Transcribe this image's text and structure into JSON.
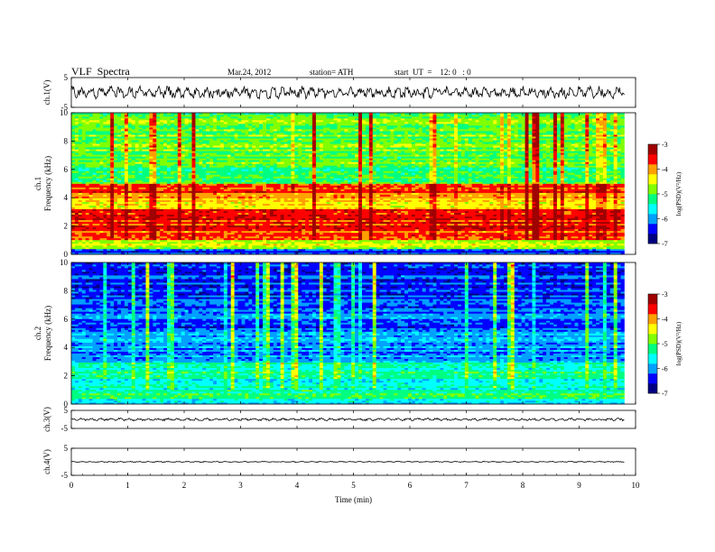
{
  "header": {
    "title": "VLF  Spectra",
    "date": "Mar.24, 2012",
    "station": "station= ATH",
    "start": "start  UT  =    12: 0   : 0"
  },
  "chart_data": [
    {
      "type": "line",
      "name": "ch1-waveform",
      "ylabel": "ch.1(V)",
      "ylim": [
        -5,
        5
      ],
      "yticks": [
        "5",
        "-5"
      ],
      "xlim": [
        0,
        10
      ],
      "data_xrange": [
        0,
        9.8
      ],
      "amplitude_range": [
        -2.2,
        2.2
      ]
    },
    {
      "type": "heatmap",
      "name": "ch1-spectrogram",
      "ylabel": "ch.1\nFrequency  (kHz)",
      "ylim": [
        0,
        10
      ],
      "yticks": [
        "0",
        "2",
        "4",
        "6",
        "8",
        "10"
      ],
      "xlim": [
        0,
        10
      ],
      "data_xrange": [
        0,
        9.8
      ],
      "colorbar": {
        "label": "log(PSD)(V²/Hz)",
        "range": [
          -7,
          -3
        ],
        "ticks": [
          "-3",
          "-4",
          "-5",
          "-6",
          "-7"
        ]
      },
      "frequency_profile": [
        {
          "f": [
            0,
            0.4
          ],
          "level": -6.3
        },
        {
          "f": [
            0.4,
            1.0
          ],
          "level": -4.6
        },
        {
          "f": [
            1.0,
            3.2
          ],
          "level": -3.7
        },
        {
          "f": [
            3.2,
            4.2
          ],
          "level": -4.2
        },
        {
          "f": [
            4.2,
            5.0
          ],
          "level": -3.8
        },
        {
          "f": [
            5.0,
            7.0
          ],
          "level": -5.0
        },
        {
          "f": [
            7.0,
            10.0
          ],
          "level": -4.9
        }
      ]
    },
    {
      "type": "heatmap",
      "name": "ch2-spectrogram",
      "ylabel": "ch.2\nFrequency  (kHz)",
      "ylim": [
        0,
        10
      ],
      "yticks": [
        "0",
        "2",
        "4",
        "6",
        "8",
        "10"
      ],
      "xlim": [
        0,
        10
      ],
      "data_xrange": [
        0,
        9.8
      ],
      "colorbar": {
        "label": "log(PSD)(V²/Hz)",
        "range": [
          -7,
          -3
        ],
        "ticks": [
          "-3",
          "-4",
          "-5",
          "-6",
          "-7"
        ]
      },
      "frequency_profile": [
        {
          "f": [
            0,
            0.4
          ],
          "level": -5.6
        },
        {
          "f": [
            0.4,
            1.0
          ],
          "level": -5.1
        },
        {
          "f": [
            1.0,
            3.0
          ],
          "level": -5.4
        },
        {
          "f": [
            3.0,
            5.0
          ],
          "level": -6.0
        },
        {
          "f": [
            5.0,
            7.0
          ],
          "level": -6.2
        },
        {
          "f": [
            7.0,
            10.0
          ],
          "level": -6.3
        }
      ]
    },
    {
      "type": "line",
      "name": "ch3-waveform",
      "ylabel": "ch.3(V)",
      "ylim": [
        -5,
        5
      ],
      "yticks": [
        "5",
        "-5"
      ],
      "xlim": [
        0,
        10
      ],
      "data_xrange": [
        0,
        9.8
      ],
      "amplitude_range": [
        -0.8,
        0.8
      ]
    },
    {
      "type": "line",
      "name": "ch4-waveform",
      "ylabel": "ch.4(V)",
      "ylim": [
        -5,
        5
      ],
      "yticks": [
        "5",
        "-5"
      ],
      "xlim": [
        0,
        10
      ],
      "data_xrange": [
        0,
        9.8
      ],
      "amplitude_range": [
        -0.2,
        0.2
      ]
    }
  ],
  "xaxis": {
    "label": "Time  (min)",
    "ticks": [
      "0",
      "1",
      "2",
      "3",
      "4",
      "5",
      "6",
      "7",
      "8",
      "9",
      "10"
    ]
  },
  "colors": {
    "scale": [
      "#000080",
      "#0000ff",
      "#00a0ff",
      "#00ffff",
      "#00ff80",
      "#80ff00",
      "#ffff00",
      "#ffa000",
      "#ff0000",
      "#a00000"
    ]
  }
}
